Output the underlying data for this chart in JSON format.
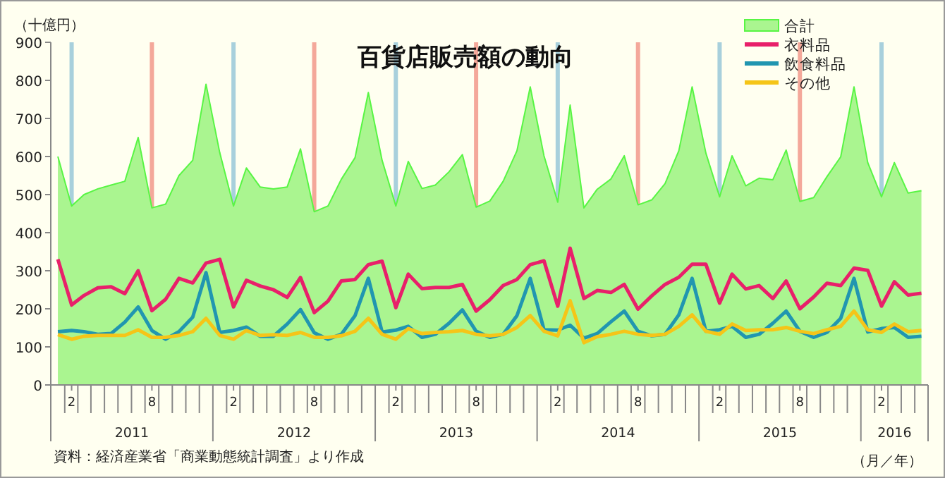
{
  "chart_data": {
    "type": "line",
    "title": "百貨店販売額の動向",
    "ylabel": "（十億円）",
    "xlabel": "（月／年）",
    "x": [
      "2011-01",
      "2011-02",
      "2011-03",
      "2011-04",
      "2011-05",
      "2011-06",
      "2011-07",
      "2011-08",
      "2011-09",
      "2011-10",
      "2011-11",
      "2011-12",
      "2012-01",
      "2012-02",
      "2012-03",
      "2012-04",
      "2012-05",
      "2012-06",
      "2012-07",
      "2012-08",
      "2012-09",
      "2012-10",
      "2012-11",
      "2012-12",
      "2013-01",
      "2013-02",
      "2013-03",
      "2013-04",
      "2013-05",
      "2013-06",
      "2013-07",
      "2013-08",
      "2013-09",
      "2013-10",
      "2013-11",
      "2013-12",
      "2014-01",
      "2014-02",
      "2014-03",
      "2014-04",
      "2014-05",
      "2014-06",
      "2014-07",
      "2014-08",
      "2014-09",
      "2014-10",
      "2014-11",
      "2014-12",
      "2015-01",
      "2015-02",
      "2015-03",
      "2015-04",
      "2015-05",
      "2015-06",
      "2015-07",
      "2015-08",
      "2015-09",
      "2015-10",
      "2015-11",
      "2015-12",
      "2016-01",
      "2016-02",
      "2016-03",
      "2016-04",
      "2016-05"
    ],
    "series": [
      {
        "name": "合計",
        "type": "area",
        "color": "#aaf590",
        "values": [
          600,
          470,
          500,
          515,
          525,
          535,
          650,
          465,
          475,
          550,
          590,
          790,
          610,
          470,
          570,
          520,
          515,
          520,
          620,
          455,
          470,
          540,
          597,
          768,
          590,
          470,
          587,
          516,
          525,
          560,
          605,
          467,
          483,
          535,
          615,
          783,
          602,
          480,
          735,
          465,
          514,
          541,
          602,
          473,
          486,
          529,
          615,
          783,
          609,
          494,
          602,
          523,
          543,
          539,
          617,
          482,
          492,
          547,
          599,
          783,
          584,
          494,
          584,
          504,
          510
        ]
      },
      {
        "name": "衣料品",
        "color": "#e8206a",
        "values": [
          330,
          210,
          235,
          255,
          258,
          240,
          300,
          195,
          225,
          280,
          268,
          320,
          330,
          205,
          275,
          260,
          250,
          230,
          282,
          190,
          220,
          273,
          277,
          316,
          325,
          203,
          291,
          253,
          256,
          256,
          264,
          194,
          224,
          261,
          277,
          316,
          326,
          207,
          359,
          227,
          248,
          243,
          264,
          199,
          234,
          264,
          283,
          317,
          317,
          215,
          291,
          252,
          261,
          227,
          273,
          200,
          231,
          267,
          261,
          307,
          301,
          207,
          271,
          236,
          241
        ]
      },
      {
        "name": "飲食料品",
        "color": "#2196b0",
        "values": [
          140,
          143,
          140,
          133,
          135,
          165,
          205,
          143,
          120,
          140,
          178,
          295,
          138,
          143,
          152,
          128,
          128,
          160,
          198,
          137,
          120,
          133,
          182,
          280,
          139,
          144,
          154,
          125,
          133,
          162,
          197,
          141,
          125,
          133,
          182,
          280,
          145,
          144,
          157,
          123,
          135,
          166,
          194,
          141,
          129,
          133,
          184,
          280,
          141,
          145,
          154,
          125,
          133,
          162,
          194,
          141,
          125,
          138,
          175,
          280,
          139,
          148,
          151,
          125,
          128
        ]
      },
      {
        "name": "その他",
        "color": "#f5c518",
        "values": [
          132,
          120,
          128,
          130,
          130,
          130,
          145,
          125,
          125,
          130,
          140,
          175,
          130,
          120,
          143,
          130,
          132,
          130,
          138,
          125,
          125,
          129,
          141,
          175,
          133,
          120,
          148,
          135,
          138,
          140,
          143,
          133,
          129,
          133,
          151,
          182,
          141,
          129,
          221,
          111,
          127,
          133,
          141,
          133,
          130,
          133,
          154,
          184,
          141,
          133,
          160,
          143,
          145,
          145,
          151,
          141,
          135,
          145,
          154,
          194,
          145,
          138,
          160,
          140,
          143
        ]
      }
    ],
    "xlim": [
      "2010-12-16",
      "2016-05-16"
    ],
    "xticks": [
      {
        "value": "2011-02",
        "label": "2"
      },
      {
        "value": "2011-08",
        "label": "8"
      },
      {
        "value": "2012-02",
        "label": "2"
      },
      {
        "value": "2012-08",
        "label": "8"
      },
      {
        "value": "2013-02",
        "label": "2"
      },
      {
        "value": "2013-08",
        "label": "8"
      },
      {
        "value": "2014-02",
        "label": "2"
      },
      {
        "value": "2014-08",
        "label": "8"
      },
      {
        "value": "2015-02",
        "label": "2"
      },
      {
        "value": "2015-08",
        "label": "8"
      },
      {
        "value": "2016-02",
        "label": "2"
      }
    ],
    "ylim": [
      0,
      900
    ],
    "yticks": [
      0,
      100,
      200,
      300,
      400,
      500,
      600,
      700,
      800,
      900
    ],
    "ref_lines": [
      {
        "axis": "x",
        "value": "2011-02",
        "color": "#a8d0dc"
      },
      {
        "axis": "x",
        "value": "2011-08",
        "color": "#f4a89a"
      },
      {
        "axis": "x",
        "value": "2012-02",
        "color": "#a8d0dc"
      },
      {
        "axis": "x",
        "value": "2012-08",
        "color": "#f4a89a"
      },
      {
        "axis": "x",
        "value": "2013-02",
        "color": "#a8d0dc"
      },
      {
        "axis": "x",
        "value": "2013-08",
        "color": "#f4a89a"
      },
      {
        "axis": "x",
        "value": "2014-02",
        "color": "#a8d0dc"
      },
      {
        "axis": "x",
        "value": "2014-08",
        "color": "#f4a89a"
      },
      {
        "axis": "x",
        "value": "2015-02",
        "color": "#a8d0dc"
      },
      {
        "axis": "x",
        "value": "2015-08",
        "color": "#f4a89a"
      },
      {
        "axis": "x",
        "value": "2016-02",
        "color": "#a8d0dc"
      }
    ],
    "annotations": [
      "2011",
      "2012",
      "2013",
      "2014",
      "2015",
      "2016",
      "資料：経済産業省「商業動態統計調査」より作成"
    ],
    "grid": false,
    "legend": "top right",
    "marker": "none",
    "line_style": "solid"
  }
}
